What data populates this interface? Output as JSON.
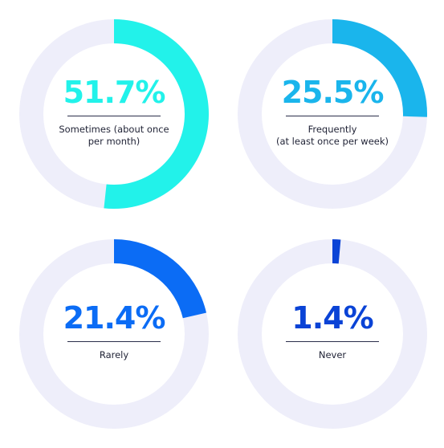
{
  "chart_data": [
    {
      "type": "pie",
      "value": 51.7,
      "value_label": "51.7%",
      "label": "Sometimes (about once\nper month)",
      "color": "#22f2ea",
      "track_color": "#eeeefa"
    },
    {
      "type": "pie",
      "value": 25.5,
      "value_label": "25.5%",
      "label": "Frequently\n(at least once per week)",
      "color": "#1ab5ec",
      "track_color": "#eeeefa"
    },
    {
      "type": "pie",
      "value": 21.4,
      "value_label": "21.4%",
      "label": "Rarely",
      "color": "#0b6cf5",
      "track_color": "#eeeefa"
    },
    {
      "type": "pie",
      "value": 1.4,
      "value_label": "1.4%",
      "label": "Never",
      "color": "#0a43d6",
      "track_color": "#eeeefa"
    }
  ]
}
